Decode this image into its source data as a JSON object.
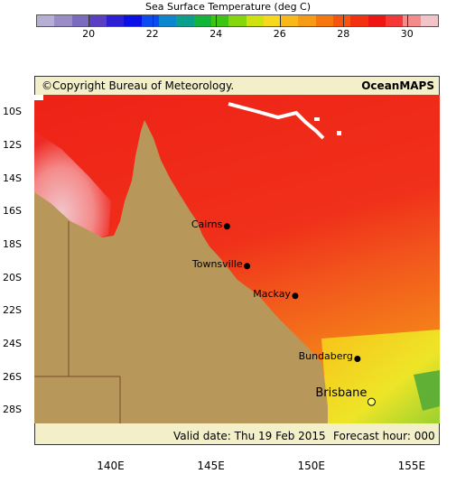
{
  "colorbar": {
    "title": "Sea Surface Temperature (deg C)",
    "ticks": [
      "20",
      "22",
      "24",
      "26",
      "28",
      "30"
    ],
    "colors": [
      "#b7aed3",
      "#9a8cc7",
      "#7a6bc0",
      "#5a3fc5",
      "#2c1fd4",
      "#0a10e6",
      "#0a4cf0",
      "#0b86cf",
      "#0aa08c",
      "#12b43a",
      "#3ec414",
      "#86d60e",
      "#cde20e",
      "#f6d91e",
      "#f7b91a",
      "#f79a14",
      "#f7770f",
      "#f6540f",
      "#f3300f",
      "#ef1513",
      "#f53737",
      "#f48a8a",
      "#f2c4c8"
    ]
  },
  "header": {
    "copyright": "©Copyright Bureau of Meteorology.",
    "brand": "OceanMAPS"
  },
  "footer": {
    "valid_date": "Valid date: Thu 19 Feb 2015",
    "forecast_hour": "Forecast hour: 000"
  },
  "axes": {
    "lat_labels": [
      "10S",
      "12S",
      "14S",
      "16S",
      "18S",
      "20S",
      "22S",
      "24S",
      "26S",
      "28S"
    ],
    "lon_labels": [
      "140E",
      "145E",
      "150E",
      "155E"
    ]
  },
  "cities": [
    {
      "name": "Cairns",
      "lon": 145.8,
      "lat": -16.9
    },
    {
      "name": "Townsville",
      "lon": 146.8,
      "lat": -19.3
    },
    {
      "name": "Mackay",
      "lon": 149.2,
      "lat": -21.1
    },
    {
      "name": "Bundaberg",
      "lon": 152.3,
      "lat": -24.9
    },
    {
      "name": "Brisbane",
      "lon": 153.0,
      "lat": -27.5
    }
  ],
  "colors": {
    "land": "#b8975a",
    "sea_hot": "#ef2a1a",
    "sea_warm": "#f5551a",
    "sea_cool": "#f0e023",
    "gulf_pink": "#f2c4c8",
    "frame_bg": "#f3efc8"
  }
}
